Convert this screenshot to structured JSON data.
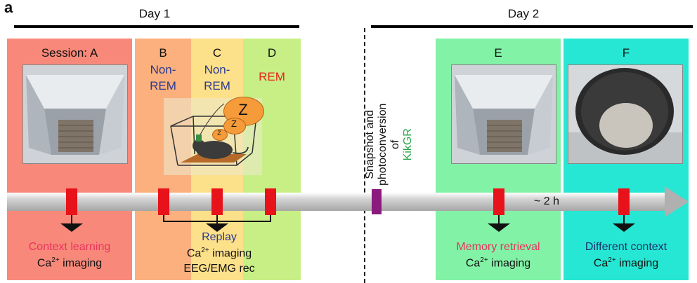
{
  "panel_label": "a",
  "days": {
    "day1": "Day 1",
    "day2": "Day 2"
  },
  "sessions": {
    "a": {
      "label": "Session: A",
      "caption_line1": "Context learning",
      "caption_line2_prefix": "Ca",
      "caption_line2_sup": "2+",
      "caption_line2_suffix": " imaging"
    },
    "b": {
      "letter": "B",
      "line1": "Non-",
      "line2": "REM"
    },
    "c": {
      "letter": "C",
      "line1": "Non-",
      "line2": "REM"
    },
    "d": {
      "letter": "D",
      "line1": "REM"
    },
    "e": {
      "letter": "E",
      "caption_line1": "Memory retrieval",
      "caption_line2_prefix": "Ca",
      "caption_line2_sup": "2+",
      "caption_line2_suffix": " imaging"
    },
    "f": {
      "letter": "F",
      "caption_line1": "Different context",
      "caption_line2_prefix": "Ca",
      "caption_line2_sup": "2+",
      "caption_line2_suffix": " imaging"
    }
  },
  "sleep": {
    "replay": "Replay",
    "imaging_prefix": "Ca",
    "imaging_sup": "2+",
    "imaging_suffix": " imaging",
    "eeg": "EEG/EMG rec",
    "z_big": "Z",
    "z_mid": "Z",
    "z_small": "Z"
  },
  "snapshot": {
    "line1": "Snapshot and",
    "line2": "photoconversion",
    "line3": "of",
    "kik": "KikGR"
  },
  "interval": "~ 2 h",
  "colors": {
    "session_a": "#f8897a",
    "session_b": "#fbb07d",
    "session_c": "#fde08a",
    "session_d": "#c7ef86",
    "session_e": "#82f2a6",
    "session_f": "#26e7d3",
    "marker": "#e8121a",
    "snapshot_marker": "#8a1a7e"
  }
}
